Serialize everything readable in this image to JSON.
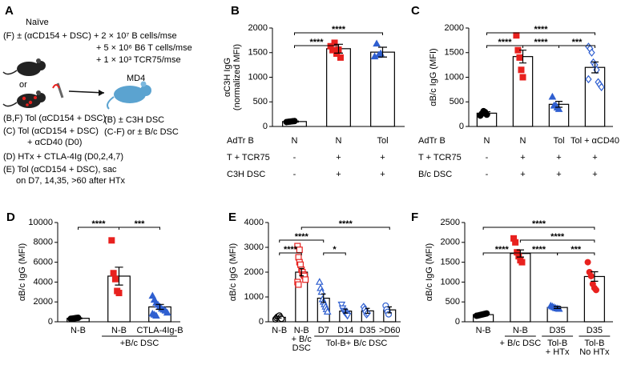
{
  "schematic": {
    "panel": "A",
    "title": "Naïve",
    "protocol": [
      "(F) ± (αCD154 + DSC) + 2 × 10⁷ B cells/mse",
      "+ 5 × 10⁶ B6 T cells/mse",
      "+ 1 × 10³ TCR75/mse"
    ],
    "or": "or",
    "recipient": "MD4",
    "recipient_notes": [
      "(B) ± C3H DSC",
      "(C-F) or ± B/c DSC"
    ],
    "groups": [
      "(B,F) Tol (αCD154 + DSC)",
      "(C) Tol (αCD154 + DSC)",
      "+ αCD40 (D0)",
      "(D) HTx + CTLA-4Ig (D0,2,4,7)",
      "(E) Tol (αCD154 + DSC), sac",
      "on D7, 14,35, >60 after HTx"
    ]
  },
  "chart_data": [
    {
      "type": "bar",
      "panel": "B",
      "ylabel": [
        "αC3H IgG",
        "(normalized MFI)"
      ],
      "ylim": [
        0,
        2000
      ],
      "yticks": [
        0,
        500,
        1000,
        1500,
        2000
      ],
      "values": [
        100,
        1580,
        1510
      ],
      "errors": [
        10,
        90,
        100
      ],
      "groups": [
        {
          "marker": "circle",
          "color": "#000000",
          "open": false,
          "points": [
            90,
            95,
            100,
            105,
            110
          ]
        },
        {
          "marker": "square",
          "color": "#e8211e",
          "open": false,
          "points": [
            1630,
            1550,
            1700,
            1480,
            1560,
            1400
          ]
        },
        {
          "marker": "triangle",
          "color": "#2f5fd0",
          "open": false,
          "points": [
            1420,
            1680,
            1450,
            1480
          ]
        }
      ],
      "significance": [
        {
          "from": 0,
          "to": 1,
          "label": "****"
        },
        {
          "from": 0,
          "to": 2,
          "label": "****"
        }
      ],
      "table": [
        {
          "label": "AdTr B",
          "cells": [
            "N",
            "N",
            "Tol"
          ]
        },
        {
          "label": "T + TCR75",
          "cells": [
            "-",
            "+",
            "+"
          ]
        },
        {
          "label": "C3H DSC",
          "cells": [
            "-",
            "+",
            "+"
          ]
        }
      ]
    },
    {
      "type": "bar",
      "panel": "C",
      "ylabel": [
        "αB/c IgG (MFI)"
      ],
      "ylim": [
        0,
        2000
      ],
      "yticks": [
        0,
        500,
        1000,
        1500,
        2000
      ],
      "values": [
        270,
        1420,
        450,
        1200
      ],
      "errors": [
        30,
        130,
        60,
        110
      ],
      "groups": [
        {
          "marker": "circle",
          "color": "#000000",
          "open": false,
          "points": [
            220,
            260,
            310,
            290,
            240
          ]
        },
        {
          "marker": "square",
          "color": "#e8211e",
          "open": false,
          "points": [
            1850,
            1550,
            1400,
            1150,
            1000
          ]
        },
        {
          "marker": "triangle",
          "color": "#2f5fd0",
          "open": false,
          "points": [
            600,
            420,
            430,
            380,
            350
          ]
        },
        {
          "marker": "diamond",
          "color": "#2f5fd0",
          "open": true,
          "points": [
            1620,
            1580,
            1500,
            1300,
            1250,
            1150,
            900,
            850,
            800,
            960
          ]
        }
      ],
      "significance": [
        {
          "from": 0,
          "to": 1,
          "label": "****"
        },
        {
          "from": 1,
          "to": 2,
          "label": "****"
        },
        {
          "from": 2,
          "to": 3,
          "label": "***"
        },
        {
          "from": 0,
          "to": 3,
          "label": "****"
        }
      ],
      "table": [
        {
          "label": "AdTr B",
          "cells": [
            "N",
            "N",
            "Tol",
            "Tol + αCD40"
          ]
        },
        {
          "label": "T + TCR75",
          "cells": [
            "-",
            "+",
            "+",
            "+"
          ]
        },
        {
          "label": "B/c DSC",
          "cells": [
            "-",
            "+",
            "+",
            "+"
          ]
        }
      ]
    },
    {
      "type": "bar",
      "panel": "D",
      "ylabel": [
        "αB/c IgG (MFI)"
      ],
      "ylim": [
        0,
        10000
      ],
      "yticks": [
        0,
        2000,
        4000,
        6000,
        8000,
        10000
      ],
      "values": [
        350,
        4600,
        1500
      ],
      "errors": [
        50,
        900,
        250
      ],
      "groups": [
        {
          "marker": "circle",
          "color": "#000000",
          "open": false,
          "points": [
            300,
            320,
            350,
            380,
            400
          ]
        },
        {
          "marker": "square",
          "color": "#e8211e",
          "open": false,
          "points": [
            8200,
            4900,
            4300,
            3100,
            2900
          ]
        },
        {
          "marker": "triangle",
          "color": "#2f5fd0",
          "open": false,
          "points": [
            2600,
            2200,
            1900,
            1700,
            1500,
            1300,
            1200,
            1100,
            900,
            800,
            700,
            600
          ]
        }
      ],
      "significance": [
        {
          "from": 0,
          "to": 1,
          "label": "****"
        },
        {
          "from": 1,
          "to": 2,
          "label": "***"
        }
      ],
      "categories": [
        [
          "N-B"
        ],
        [
          "N-B"
        ],
        [
          "CTLA-4Ig-B"
        ]
      ],
      "group_labels": [
        {
          "from": 1,
          "to": 2,
          "label": [
            "+B/c DSC"
          ]
        }
      ]
    },
    {
      "type": "bar",
      "panel": "E",
      "ylabel": [
        "αB/c IgG (MFI)"
      ],
      "ylim": [
        0,
        4000
      ],
      "yticks": [
        0,
        1000,
        2000,
        3000,
        4000
      ],
      "values": [
        180,
        2000,
        950,
        430,
        440,
        480
      ],
      "errors": [
        30,
        150,
        170,
        80,
        100,
        120
      ],
      "groups": [
        {
          "marker": "circle",
          "color": "#000000",
          "open": true,
          "points": [
            100,
            150,
            200,
            220,
            250,
            180,
            120
          ]
        },
        {
          "marker": "square",
          "color": "#e8211e",
          "open": true,
          "points": [
            3050,
            2600,
            2400,
            2300,
            2100,
            2000,
            1900,
            1850,
            1700,
            1600,
            1500,
            2900
          ]
        },
        {
          "marker": "triangle",
          "color": "#2f5fd0",
          "open": true,
          "points": [
            1600,
            1350,
            1200,
            900,
            800,
            700,
            600,
            500,
            400
          ]
        },
        {
          "marker": "triangle-down",
          "color": "#2f5fd0",
          "open": true,
          "points": [
            700,
            550,
            450,
            400,
            350,
            300,
            250
          ]
        },
        {
          "marker": "diamond",
          "color": "#2f5fd0",
          "open": true,
          "points": [
            600,
            500,
            400,
            300,
            350
          ]
        },
        {
          "marker": "circle",
          "color": "#2f5fd0",
          "open": true,
          "points": [
            650,
            500,
            400,
            300
          ]
        }
      ],
      "significance": [
        {
          "from": 0,
          "to": 1,
          "label": "****"
        },
        {
          "from": 2,
          "to": 3,
          "label": "*"
        },
        {
          "from": 0,
          "to": 2,
          "label": "****"
        },
        {
          "from": 1,
          "to": 5,
          "label": "****"
        }
      ],
      "categories": [
        [
          "N-B"
        ],
        [
          "N-B",
          "+ B/c",
          "DSC"
        ],
        [
          "D7"
        ],
        [
          "D14"
        ],
        [
          "D35"
        ],
        [
          ">D60"
        ]
      ],
      "group_labels": [
        {
          "from": 2,
          "to": 5,
          "label": [
            "Tol-B+ B/c DSC"
          ]
        }
      ]
    },
    {
      "type": "bar",
      "panel": "F",
      "ylabel": [
        "αB/c IgG (MFI)"
      ],
      "ylim": [
        0,
        2500
      ],
      "yticks": [
        0,
        500,
        1000,
        1500,
        2000,
        2500
      ],
      "values": [
        180,
        1720,
        360,
        1140
      ],
      "errors": [
        15,
        90,
        25,
        120
      ],
      "groups": [
        {
          "marker": "circle",
          "color": "#000000",
          "open": false,
          "points": [
            150,
            160,
            170,
            180,
            190,
            200,
            210
          ]
        },
        {
          "marker": "square",
          "color": "#e8211e",
          "open": false,
          "points": [
            2100,
            2000,
            1750,
            1650,
            1550,
            1500
          ]
        },
        {
          "marker": "triangle",
          "color": "#2f5fd0",
          "open": false,
          "points": [
            400,
            380,
            360,
            340,
            330,
            320
          ]
        },
        {
          "marker": "circle",
          "color": "#e8211e",
          "open": false,
          "points": [
            1500,
            1250,
            1150,
            950,
            850,
            800
          ]
        }
      ],
      "significance": [
        {
          "from": 0,
          "to": 1,
          "label": "****"
        },
        {
          "from": 1,
          "to": 2,
          "label": "****"
        },
        {
          "from": 2,
          "to": 3,
          "label": "***"
        },
        {
          "from": 1,
          "to": 3,
          "label": "****"
        },
        {
          "from": 0,
          "to": 3,
          "label": "****"
        }
      ],
      "categories": [
        [
          "N-B"
        ],
        [
          "N-B"
        ],
        [
          "D35"
        ],
        [
          "D35"
        ]
      ],
      "group_labels": [
        {
          "from": 1,
          "to": 1,
          "label": [
            "+ B/c DSC"
          ]
        },
        {
          "from": 2,
          "to": 2,
          "label": [
            "Tol-B",
            "+ HTx"
          ]
        },
        {
          "from": 3,
          "to": 3,
          "label": [
            "Tol-B",
            "No HTx"
          ]
        }
      ]
    }
  ]
}
